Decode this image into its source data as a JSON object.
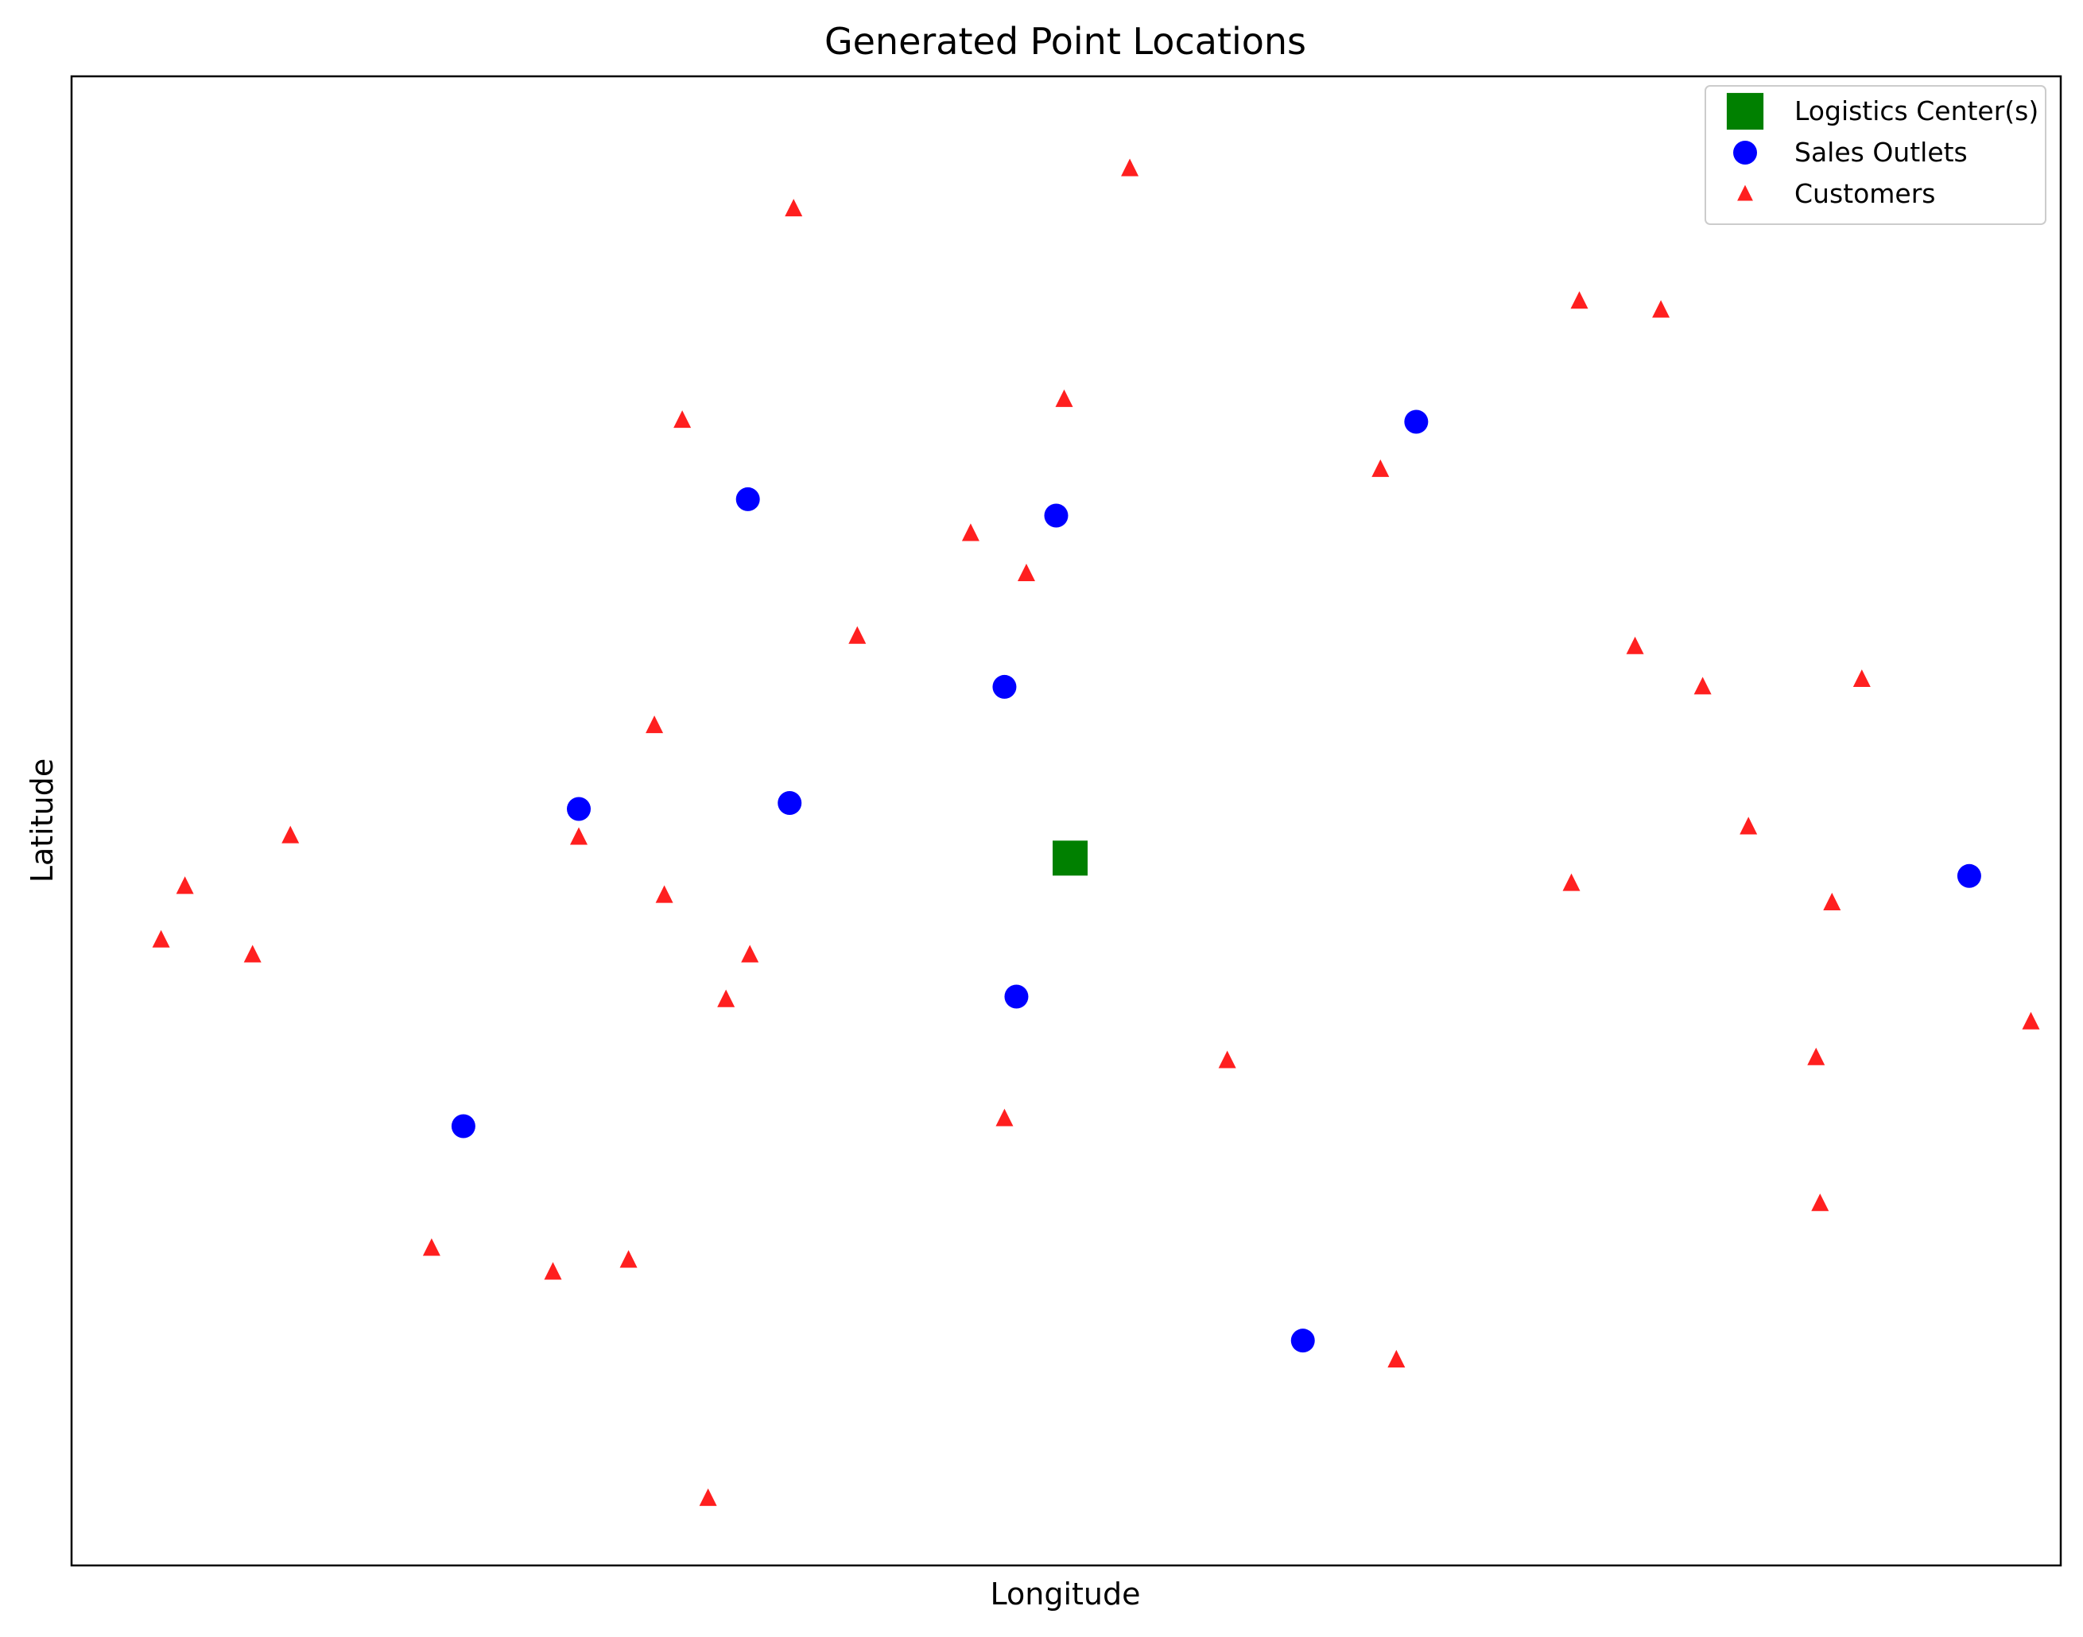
{
  "chart_data": {
    "type": "scatter",
    "title": "Generated Point Locations",
    "xlabel": "Longitude",
    "ylabel": "Latitude",
    "xlim": [
      0,
      100
    ],
    "ylim": [
      0,
      100
    ],
    "ticks_visible": false,
    "grid": false,
    "legend_position": "top-right",
    "series": [
      {
        "name": "Logistics Center(s)",
        "marker": "square",
        "color": "#008000",
        "points": [
          [
            50.2,
            47.5
          ]
        ]
      },
      {
        "name": "Sales Outlets",
        "marker": "circle",
        "color": "#0000ff",
        "points": [
          [
            67.6,
            76.8
          ],
          [
            34.0,
            71.6
          ],
          [
            49.5,
            70.5
          ],
          [
            46.9,
            59.0
          ],
          [
            36.1,
            51.2
          ],
          [
            25.5,
            50.8
          ],
          [
            95.4,
            46.3
          ],
          [
            47.5,
            38.2
          ],
          [
            19.7,
            29.5
          ],
          [
            61.9,
            15.1
          ]
        ]
      },
      {
        "name": "Customers",
        "marker": "triangle",
        "color": "#ff0000",
        "points": [
          [
            53.2,
            93.8
          ],
          [
            36.3,
            91.1
          ],
          [
            75.8,
            84.9
          ],
          [
            79.9,
            84.3
          ],
          [
            49.9,
            78.3
          ],
          [
            30.7,
            76.9
          ],
          [
            65.8,
            73.6
          ],
          [
            45.2,
            69.3
          ],
          [
            48.0,
            66.6
          ],
          [
            39.5,
            62.4
          ],
          [
            78.6,
            61.7
          ],
          [
            82.0,
            59.0
          ],
          [
            90.0,
            59.5
          ],
          [
            29.3,
            56.4
          ],
          [
            11.0,
            49.0
          ],
          [
            25.5,
            48.9
          ],
          [
            5.7,
            45.6
          ],
          [
            29.8,
            45.0
          ],
          [
            75.4,
            45.8
          ],
          [
            84.3,
            49.6
          ],
          [
            88.5,
            44.5
          ],
          [
            4.5,
            42.0
          ],
          [
            9.1,
            41.0
          ],
          [
            34.1,
            41.0
          ],
          [
            32.9,
            38.0
          ],
          [
            98.5,
            36.5
          ],
          [
            58.1,
            33.9
          ],
          [
            87.7,
            34.1
          ],
          [
            46.9,
            30.0
          ],
          [
            87.9,
            24.3
          ],
          [
            18.1,
            21.3
          ],
          [
            24.2,
            19.7
          ],
          [
            28.0,
            20.5
          ],
          [
            66.6,
            13.8
          ],
          [
            32.0,
            4.5
          ]
        ]
      }
    ]
  }
}
